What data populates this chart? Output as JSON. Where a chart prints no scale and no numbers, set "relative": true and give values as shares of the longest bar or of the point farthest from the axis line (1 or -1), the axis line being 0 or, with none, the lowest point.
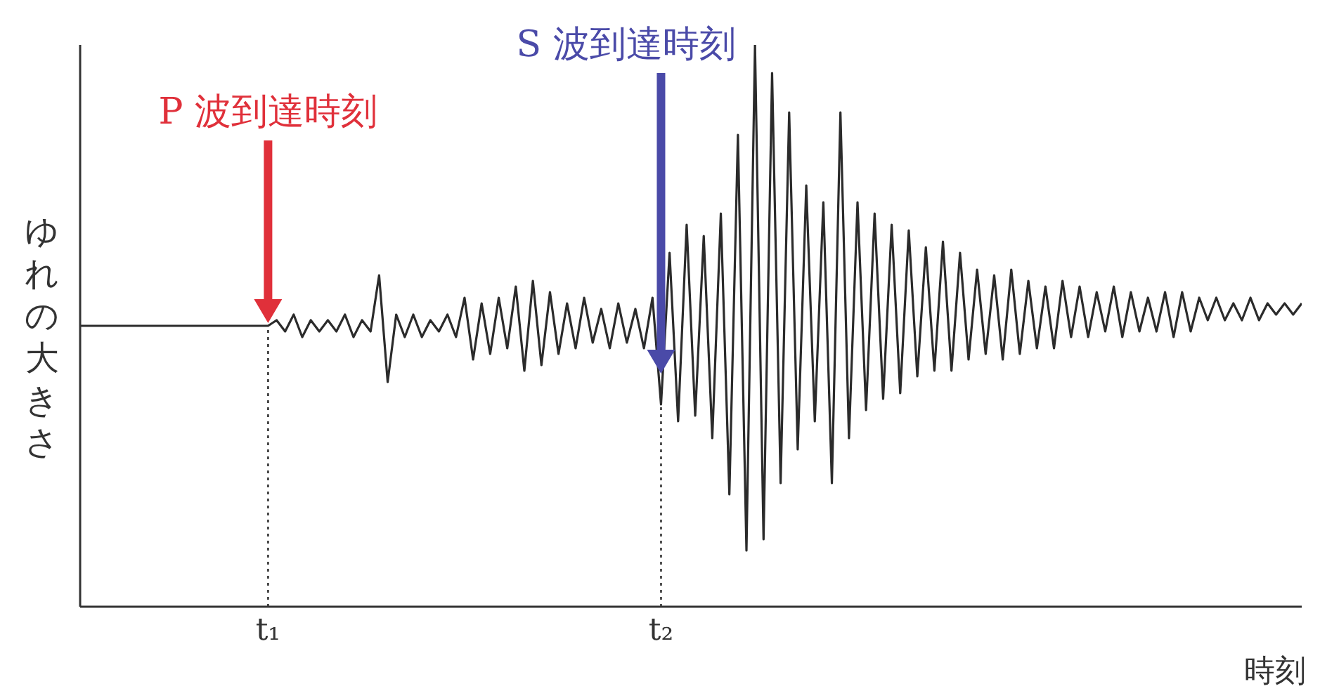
{
  "chart_data": {
    "type": "line",
    "relative": true,
    "xlabel": "時刻",
    "ylabel": "ゆれの大きさ",
    "categories": [
      null,
      null,
      null,
      null,
      null,
      null,
      null,
      null,
      null,
      null,
      null,
      null,
      null,
      null,
      null,
      null,
      null,
      null,
      null,
      null,
      null,
      null,
      "t₁",
      null,
      null,
      null,
      null,
      null,
      null,
      null,
      null,
      null,
      null,
      null,
      null,
      null,
      null,
      null,
      null,
      null,
      null,
      null,
      null,
      null,
      null,
      null,
      null,
      null,
      null,
      null,
      null,
      null,
      null,
      null,
      null,
      null,
      null,
      null,
      null,
      null,
      null,
      null,
      null,
      null,
      null,
      null,
      null,
      null,
      "t₂",
      null,
      null,
      null,
      null,
      null,
      null,
      null,
      null,
      null,
      null,
      null,
      null,
      null,
      null,
      null,
      null,
      null,
      null,
      null,
      null,
      null,
      null,
      null,
      null,
      null,
      null,
      null,
      null,
      null,
      null,
      null,
      null,
      null,
      null,
      null,
      null,
      null,
      null,
      null,
      null,
      null,
      null,
      null,
      null,
      null,
      null,
      null,
      null,
      null,
      null,
      null,
      null,
      null,
      null,
      null,
      null,
      null,
      null,
      null,
      null,
      null,
      null,
      null,
      null,
      null,
      null,
      null,
      null,
      null,
      null,
      null,
      null,
      null,
      null,
      null
    ],
    "series": [
      {
        "color": "#2b2b2b",
        "values": [
          0.5,
          0.5,
          0.5,
          0.5,
          0.5,
          0.5,
          0.5,
          0.5,
          0.5,
          0.5,
          0.5,
          0.5,
          0.5,
          0.5,
          0.5,
          0.5,
          0.5,
          0.5,
          0.5,
          0.5,
          0.5,
          0.5,
          0.5,
          0.51,
          0.49,
          0.52,
          0.48,
          0.51,
          0.49,
          0.51,
          0.49,
          0.52,
          0.48,
          0.51,
          0.49,
          0.59,
          0.4,
          0.52,
          0.48,
          0.52,
          0.48,
          0.51,
          0.49,
          0.52,
          0.48,
          0.55,
          0.44,
          0.54,
          0.45,
          0.55,
          0.46,
          0.57,
          0.42,
          0.58,
          0.43,
          0.56,
          0.45,
          0.54,
          0.46,
          0.55,
          0.47,
          0.53,
          0.46,
          0.54,
          0.47,
          0.53,
          0.46,
          0.55,
          0.36,
          0.63,
          0.33,
          0.68,
          0.34,
          0.66,
          0.3,
          0.7,
          0.2,
          0.84,
          0.1,
          1,
          0.12,
          0.95,
          0.22,
          0.88,
          0.28,
          0.75,
          0.33,
          0.72,
          0.22,
          0.88,
          0.3,
          0.72,
          0.35,
          0.7,
          0.37,
          0.68,
          0.38,
          0.67,
          0.41,
          0.64,
          0.42,
          0.65,
          0.42,
          0.63,
          0.44,
          0.6,
          0.45,
          0.59,
          0.44,
          0.6,
          0.45,
          0.58,
          0.46,
          0.57,
          0.46,
          0.58,
          0.48,
          0.57,
          0.48,
          0.56,
          0.49,
          0.57,
          0.48,
          0.56,
          0.49,
          0.55,
          0.49,
          0.56,
          0.48,
          0.56,
          0.49,
          0.55,
          0.51,
          0.55,
          0.51,
          0.54,
          0.51,
          0.55,
          0.51,
          0.54,
          0.52,
          0.54,
          0.52,
          0.54
        ]
      }
    ],
    "ref_lines": [
      {
        "axis": "x",
        "value": "t₁",
        "line_style": "dotted",
        "color": "#222222"
      },
      {
        "axis": "x",
        "value": "t₂",
        "line_style": "dotted",
        "color": "#222222"
      }
    ],
    "annotations": [
      "P 波到達時刻",
      "S 波到達時刻"
    ]
  }
}
